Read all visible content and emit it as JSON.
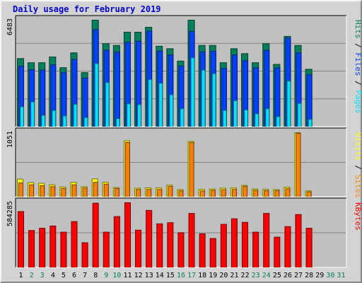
{
  "title": "Daily usage for February 2019",
  "colors": {
    "hits": "#00805c",
    "files": "#0040ff",
    "pages": "#00e0ff",
    "visits": "#ffff00",
    "sites": "#ff8000",
    "kbytes": "#ff0000",
    "weekend_label": "#00805c",
    "weekday_label": "#000000"
  },
  "chart_data": [
    {
      "type": "bar",
      "panel": "hits-files-pages",
      "ymax_label": "6483",
      "ylim": [
        0,
        6483
      ],
      "x": [
        1,
        2,
        3,
        4,
        5,
        6,
        7,
        8,
        9,
        10,
        11,
        12,
        13,
        14,
        15,
        16,
        17,
        18,
        19,
        20,
        21,
        22,
        23,
        24,
        25,
        26,
        27,
        28
      ],
      "legend": [
        "Pages",
        "Files",
        "Hits"
      ],
      "series": [
        {
          "name": "Hits",
          "values": [
            4150,
            3900,
            3900,
            4250,
            3600,
            4500,
            3300,
            6483,
            5050,
            4950,
            5750,
            5750,
            6050,
            4900,
            4750,
            4000,
            6483,
            4950,
            4950,
            3900,
            4750,
            4450,
            3900,
            5050,
            3800,
            5500,
            4950,
            3500
          ]
        },
        {
          "name": "Files",
          "values": [
            3680,
            3470,
            3450,
            3770,
            3300,
            4100,
            2970,
            5900,
            4660,
            4550,
            5140,
            5200,
            5820,
            4610,
            4370,
            3700,
            5800,
            4560,
            4600,
            3560,
            4370,
            4020,
            3590,
            4650,
            3590,
            5400,
            4500,
            3170
          ]
        },
        {
          "name": "Pages",
          "values": [
            1230,
            1520,
            710,
            1010,
            670,
            1380,
            570,
            3850,
            2700,
            510,
            1410,
            1360,
            2880,
            2660,
            1960,
            1110,
            4200,
            3450,
            3240,
            1010,
            1600,
            1040,
            800,
            1110,
            630,
            2790,
            1430,
            460
          ]
        }
      ]
    },
    {
      "type": "bar",
      "panel": "visits-sites",
      "ymax_label": "1051",
      "ylim": [
        0,
        1051
      ],
      "x": [
        1,
        2,
        3,
        4,
        5,
        6,
        7,
        8,
        9,
        10,
        11,
        12,
        13,
        14,
        15,
        16,
        17,
        18,
        19,
        20,
        21,
        22,
        23,
        24,
        25,
        26,
        27,
        28
      ],
      "legend": [
        "Sites",
        "Visits"
      ],
      "series": [
        {
          "name": "Visits",
          "values": [
            293,
            235,
            225,
            200,
            165,
            240,
            170,
            297,
            240,
            155,
            918,
            145,
            150,
            150,
            195,
            120,
            908,
            125,
            130,
            145,
            148,
            190,
            130,
            125,
            123,
            160,
            1051,
            100
          ]
        },
        {
          "name": "Sites",
          "values": [
            230,
            200,
            185,
            170,
            140,
            200,
            150,
            240,
            210,
            140,
            890,
            125,
            125,
            125,
            175,
            100,
            890,
            100,
            110,
            120,
            125,
            175,
            110,
            105,
            105,
            135,
            1040,
            85
          ]
        }
      ]
    },
    {
      "type": "bar",
      "panel": "kbytes",
      "ymax_label": "584285",
      "ylim": [
        0,
        584285
      ],
      "x": [
        1,
        2,
        3,
        4,
        5,
        6,
        7,
        8,
        9,
        10,
        11,
        12,
        13,
        14,
        15,
        16,
        17,
        18,
        19,
        20,
        21,
        22,
        23,
        24,
        25,
        26,
        27,
        28
      ],
      "legend": [
        "KBytes"
      ],
      "series": [
        {
          "name": "KBytes",
          "values": [
            505000,
            335000,
            355000,
            375000,
            320000,
            415000,
            225000,
            580000,
            320000,
            460000,
            584285,
            338000,
            515000,
            395000,
            405000,
            315000,
            488000,
            305000,
            263000,
            390000,
            440000,
            408000,
            320000,
            488000,
            275000,
            370000,
            478000,
            355000
          ]
        }
      ]
    }
  ],
  "x_labels": [
    {
      "day": "1",
      "weekend": false
    },
    {
      "day": "2",
      "weekend": true
    },
    {
      "day": "3",
      "weekend": true
    },
    {
      "day": "4",
      "weekend": false
    },
    {
      "day": "5",
      "weekend": false
    },
    {
      "day": "6",
      "weekend": false
    },
    {
      "day": "7",
      "weekend": false
    },
    {
      "day": "8",
      "weekend": false
    },
    {
      "day": "9",
      "weekend": true
    },
    {
      "day": "10",
      "weekend": true
    },
    {
      "day": "11",
      "weekend": false
    },
    {
      "day": "12",
      "weekend": false
    },
    {
      "day": "13",
      "weekend": false
    },
    {
      "day": "14",
      "weekend": false
    },
    {
      "day": "15",
      "weekend": false
    },
    {
      "day": "16",
      "weekend": true
    },
    {
      "day": "17",
      "weekend": true
    },
    {
      "day": "18",
      "weekend": false
    },
    {
      "day": "19",
      "weekend": false
    },
    {
      "day": "20",
      "weekend": false
    },
    {
      "day": "21",
      "weekend": false
    },
    {
      "day": "22",
      "weekend": false
    },
    {
      "day": "23",
      "weekend": true
    },
    {
      "day": "24",
      "weekend": true
    },
    {
      "day": "25",
      "weekend": false
    },
    {
      "day": "26",
      "weekend": false
    },
    {
      "day": "27",
      "weekend": false
    },
    {
      "day": "28",
      "weekend": false
    },
    {
      "day": "29",
      "weekend": false
    },
    {
      "day": "30",
      "weekend": true
    },
    {
      "day": "31",
      "weekend": true
    }
  ]
}
